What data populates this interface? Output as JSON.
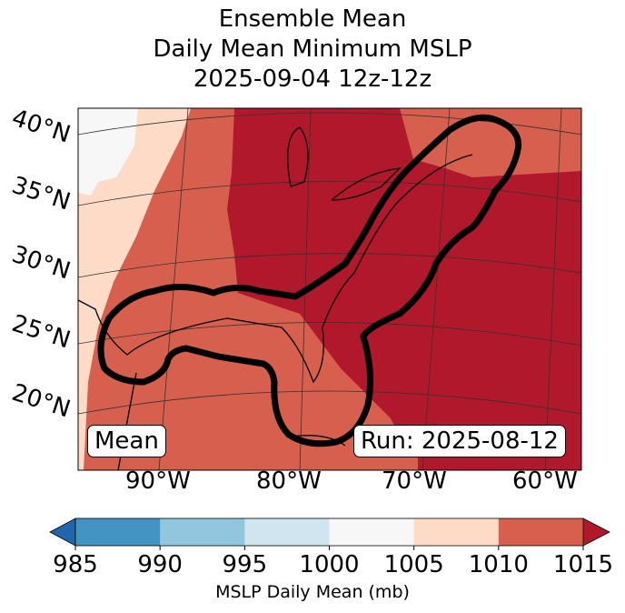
{
  "title": {
    "line1": "Ensemble Mean",
    "line2": "Daily Mean Minimum MSLP",
    "line3": "2025-09-04 12z-12z"
  },
  "lat_labels": [
    "40°N",
    "35°N",
    "30°N",
    "25°N",
    "20°N"
  ],
  "lon_labels": [
    "90°W",
    "80°W",
    "70°W",
    "60°W"
  ],
  "mean_label": "Mean",
  "run_label": "Run: 2025-08-12",
  "colorbar": {
    "ticks": [
      "985",
      "990",
      "995",
      "1000",
      "1005",
      "1010",
      "1015"
    ],
    "colors": [
      "#4393c3",
      "#92c5de",
      "#d1e5f0",
      "#f7f7f7",
      "#fddbc7",
      "#d6604d"
    ],
    "under_color": "#2166ac",
    "over_color": "#b2182b",
    "label": "MSLP Daily Mean (mb)"
  },
  "map_colors": {
    "c1000_1005": "#f7f7f7",
    "c1005_1010": "#fddbc7",
    "c1010_1015": "#d6604d",
    "over": "#b2182b"
  }
}
